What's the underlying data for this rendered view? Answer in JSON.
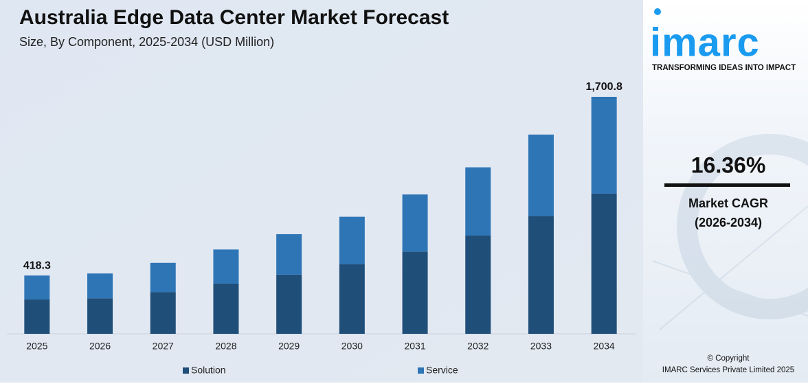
{
  "chart_data": {
    "type": "stacked-bar",
    "title": "Australia Edge Data Center Market Forecast",
    "subtitle": "Size, By Component, 2025-2034 (USD Million)",
    "categories": [
      "2025",
      "2026",
      "2027",
      "2028",
      "2029",
      "2030",
      "2031",
      "2032",
      "2033",
      "2034"
    ],
    "series": [
      {
        "name": "Solution",
        "color": "#1f4e79",
        "values": [
          247,
          255,
          300,
          360,
          425,
          500,
          590,
          705,
          845,
          1006
        ]
      },
      {
        "name": "Service",
        "color": "#2e75b6",
        "values": [
          171.3,
          178,
          209,
          245,
          290,
          340,
          410,
          490,
          585,
          694.8
        ]
      }
    ],
    "total_labels": [
      {
        "category": "2025",
        "value": 418.3,
        "label": "418.3"
      },
      {
        "category": "2034",
        "value": 1700.8,
        "label": "1,700.8"
      }
    ],
    "legend": "bottom"
  },
  "sidebar": {
    "logo": "imarc",
    "tagline": "TRANSFORMING IDEAS INTO IMPACT",
    "cagr": "16.36%",
    "cagr_label": "Market CAGR",
    "cagr_period": "(2026-2034)",
    "copyright": "© Copyright",
    "company": "IMARC Services Private Limited 2025"
  }
}
